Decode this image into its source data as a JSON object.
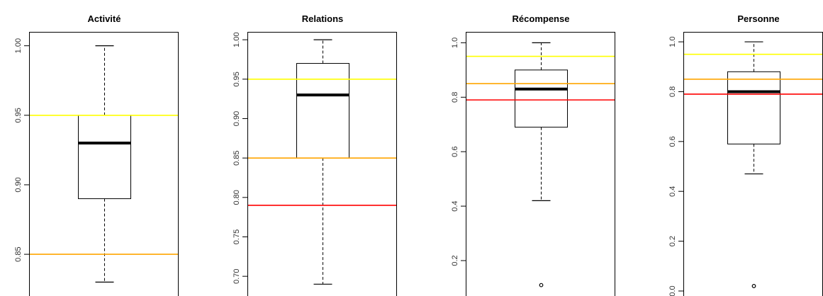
{
  "chart_data": [
    {
      "type": "boxplot",
      "title": "Activité",
      "ylim": [
        0.82,
        1.01
      ],
      "yticks": [
        0.85,
        0.9,
        0.95,
        1.0
      ],
      "ytick_labels": [
        "0.85",
        "0.90",
        "0.95",
        "1.00"
      ],
      "box": {
        "whisker_low": 0.83,
        "q1": 0.89,
        "median": 0.93,
        "q3": 0.95,
        "whisker_high": 1.0
      },
      "outliers": [],
      "reference_lines": [
        {
          "value": 0.95,
          "color": "#ffff00"
        },
        {
          "value": 0.85,
          "color": "#ffa500"
        }
      ]
    },
    {
      "type": "boxplot",
      "title": "Relations",
      "ylim": [
        0.675,
        1.01
      ],
      "yticks": [
        0.7,
        0.75,
        0.8,
        0.85,
        0.9,
        0.95,
        1.0
      ],
      "ytick_labels": [
        "0.70",
        "0.75",
        "0.80",
        "0.85",
        "0.90",
        "0.95",
        "1.00"
      ],
      "box": {
        "whisker_low": 0.69,
        "q1": 0.85,
        "median": 0.93,
        "q3": 0.97,
        "whisker_high": 1.0
      },
      "outliers": [],
      "reference_lines": [
        {
          "value": 0.95,
          "color": "#ffff00"
        },
        {
          "value": 0.85,
          "color": "#ffa500"
        },
        {
          "value": 0.79,
          "color": "#ff0000"
        }
      ]
    },
    {
      "type": "boxplot",
      "title": "Récompense",
      "ylim": [
        0.07,
        1.04
      ],
      "yticks": [
        0.2,
        0.4,
        0.6,
        0.8,
        1.0
      ],
      "ytick_labels": [
        "0.2",
        "0.4",
        "0.6",
        "0.8",
        "1.0"
      ],
      "box": {
        "whisker_low": 0.42,
        "q1": 0.69,
        "median": 0.83,
        "q3": 0.9,
        "whisker_high": 1.0
      },
      "outliers": [
        0.11
      ],
      "reference_lines": [
        {
          "value": 0.95,
          "color": "#ffff00"
        },
        {
          "value": 0.85,
          "color": "#ffa500"
        },
        {
          "value": 0.79,
          "color": "#ff0000"
        }
      ]
    },
    {
      "type": "boxplot",
      "title": "Personne",
      "ylim": [
        -0.02,
        1.04
      ],
      "yticks": [
        0.0,
        0.2,
        0.4,
        0.6,
        0.8,
        1.0
      ],
      "ytick_labels": [
        "0.0",
        "0.2",
        "0.4",
        "0.6",
        "0.8",
        "1.0"
      ],
      "box": {
        "whisker_low": 0.47,
        "q1": 0.59,
        "median": 0.8,
        "q3": 0.88,
        "whisker_high": 1.0
      },
      "outliers": [
        0.02
      ],
      "reference_lines": [
        {
          "value": 0.95,
          "color": "#ffff00"
        },
        {
          "value": 0.85,
          "color": "#ffa500"
        },
        {
          "value": 0.79,
          "color": "#ff0000"
        }
      ]
    }
  ]
}
